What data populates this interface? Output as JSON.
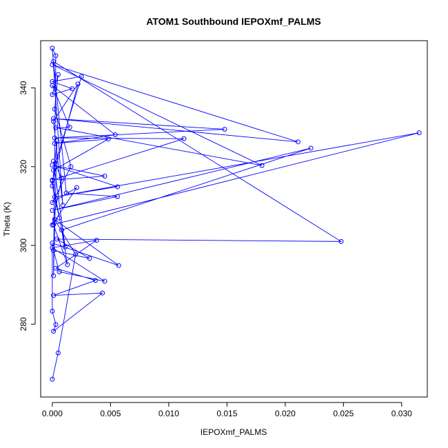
{
  "chart_data": {
    "type": "line",
    "title": "ATOM1 Southbound IEPOXmf_PALMS",
    "xlabel": "IEPOXmf_PALMS",
    "ylabel": "Theta (K)",
    "xlim": [
      -0.001,
      0.0322
    ],
    "ylim": [
      261.5,
      352
    ],
    "x_ticks": [
      0.0,
      0.005,
      0.01,
      0.015,
      0.02,
      0.025,
      0.03
    ],
    "x_tick_labels": [
      "0.000",
      "0.005",
      "0.010",
      "0.015",
      "0.020",
      "0.025",
      "0.030"
    ],
    "y_ticks": [
      280,
      300,
      320,
      340
    ],
    "y_tick_labels": [
      "280",
      "300",
      "320",
      "340"
    ],
    "grid": false,
    "markers": "open-circle",
    "series_color": "#0000ff",
    "series": [
      {
        "points": [
          [
            0.0,
            266.0
          ],
          [
            0.0005,
            272.7
          ],
          [
            0.002,
            297.7
          ],
          [
            0.0002,
            306.6
          ],
          [
            0.0057,
            294.9
          ],
          [
            0.0,
            300.6
          ],
          [
            0.0,
            283.3
          ],
          [
            0.0003,
            279.9
          ],
          [
            0.0001,
            278.2
          ],
          [
            0.0043,
            287.9
          ],
          [
            0.0001,
            287.3
          ],
          [
            0.0037,
            291.1
          ],
          [
            0.0003,
            294.2
          ],
          [
            0.0038,
            301.3
          ],
          [
            0.0,
            299.4
          ],
          [
            0.0045,
            290.9
          ],
          [
            0.0006,
            293.3
          ],
          [
            0.0001,
            298.7
          ],
          [
            0.0032,
            296.7
          ],
          [
            0.0004,
            301.6
          ],
          [
            0.0248,
            301.0
          ],
          [
            0.0001,
            346.7
          ],
          [
            0.0012,
            313.3
          ],
          [
            0.0056,
            312.4
          ],
          [
            0.0,
            308.9
          ],
          [
            0.0222,
            324.7
          ],
          [
            0.0008,
            303.9
          ],
          [
            0.0013,
            295.1
          ],
          [
            0.0001,
            305.3
          ],
          [
            0.0315,
            328.6
          ],
          [
            0.0002,
            312.3
          ],
          [
            0.0056,
            314.9
          ],
          [
            0.0,
            320.4
          ],
          [
            0.0045,
            317.6
          ],
          [
            0.0,
            316.6
          ],
          [
            0.0113,
            327.1
          ],
          [
            0.0002,
            327.3
          ],
          [
            0.0148,
            329.5
          ],
          [
            0.0001,
            332.2
          ],
          [
            0.0211,
            326.3
          ],
          [
            0.0,
            345.9
          ],
          [
            0.018,
            320.3
          ],
          [
            0.0003,
            329.9
          ],
          [
            0.0015,
            330.0
          ],
          [
            0.0,
            340.6
          ],
          [
            0.0054,
            328.1
          ],
          [
            0.0002,
            325.9
          ],
          [
            0.0048,
            327.0
          ],
          [
            0.0001,
            319.1
          ],
          [
            0.0025,
            342.9
          ],
          [
            0.0,
            341.6
          ],
          [
            0.0017,
            339.8
          ],
          [
            0.0,
            338.3
          ],
          [
            0.0005,
            343.4
          ],
          [
            0.0002,
            334.6
          ],
          [
            0.0016,
            320.0
          ],
          [
            0.0,
            310.9
          ],
          [
            0.0021,
            314.7
          ],
          [
            0.0,
            305.2
          ],
          [
            0.0008,
            317.1
          ],
          [
            0.0001,
            321.4
          ],
          [
            0.0011,
            299.6
          ],
          [
            0.0,
            316.4
          ],
          [
            0.0022,
            341.0
          ],
          [
            0.0001,
            331.5
          ],
          [
            0.0009,
            310.2
          ],
          [
            0.0,
            350.1
          ],
          [
            0.0003,
            348.2
          ],
          [
            0.0001,
            292.3
          ],
          [
            0.0004,
            326.6
          ],
          [
            0.0,
            315.1
          ],
          [
            0.0006,
            307.0
          ]
        ]
      }
    ]
  }
}
